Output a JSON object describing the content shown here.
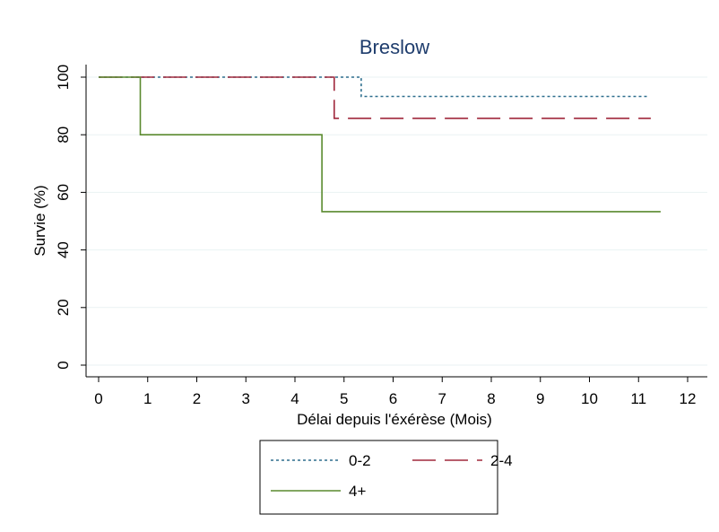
{
  "chart_data": {
    "type": "line",
    "title": "Breslow",
    "xlabel": "Délai depuis l'éxérèse (Mois)",
    "ylabel": "Survie (%)",
    "xlim": [
      0,
      12
    ],
    "ylim": [
      0,
      100
    ],
    "xticks": [
      "0",
      "1",
      "2",
      "3",
      "4",
      "5",
      "6",
      "7",
      "8",
      "9",
      "10",
      "11",
      "12"
    ],
    "yticks": [
      "0",
      "20",
      "40",
      "60",
      "80",
      "100"
    ],
    "grid": "horizontal",
    "step": true,
    "legend_position": "bottom-center",
    "series": [
      {
        "name": "0-2",
        "color": "#2e6f8e",
        "line_style": "dotted",
        "points": [
          [
            0,
            100
          ],
          [
            5.35,
            100
          ],
          [
            5.35,
            93.3
          ],
          [
            11.2,
            93.3
          ]
        ]
      },
      {
        "name": "2-4",
        "color": "#a0283c",
        "line_style": "dashed",
        "points": [
          [
            0,
            100
          ],
          [
            4.8,
            100
          ],
          [
            4.8,
            85.7
          ],
          [
            11.25,
            85.7
          ]
        ]
      },
      {
        "name": "4+",
        "color": "#5a8a2e",
        "line_style": "solid",
        "points": [
          [
            0,
            100
          ],
          [
            0.85,
            100
          ],
          [
            0.85,
            80
          ],
          [
            4.55,
            80
          ],
          [
            4.55,
            53.3
          ],
          [
            11.45,
            53.3
          ]
        ]
      }
    ]
  }
}
